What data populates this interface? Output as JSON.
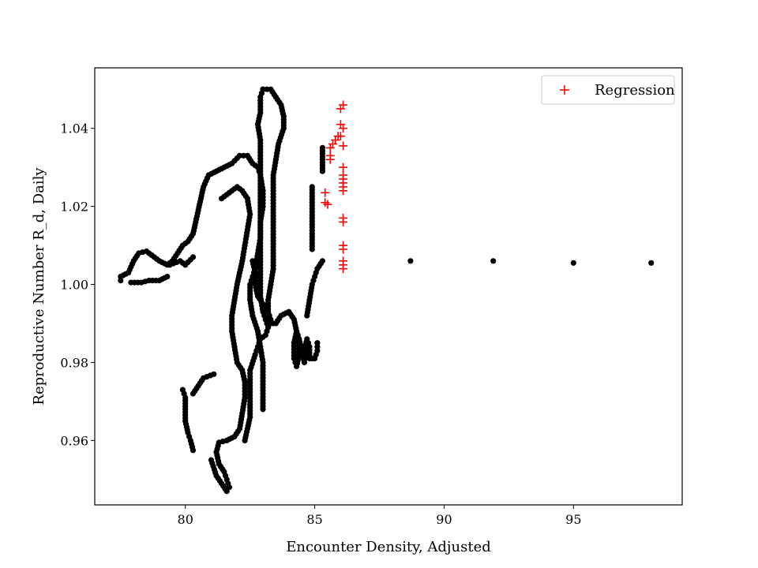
{
  "chart_data": {
    "type": "scatter",
    "title": "",
    "xlabel": "Encounter Density, Adjusted",
    "ylabel": "Reproductive Number R_d, Daily",
    "xlim": [
      76.5,
      99.2
    ],
    "ylim": [
      0.9435,
      1.0555
    ],
    "xticks": [
      80,
      85,
      90,
      95
    ],
    "xtick_labels": [
      "80",
      "85",
      "90",
      "95"
    ],
    "yticks": [
      0.96,
      0.98,
      1.0,
      1.02,
      1.04
    ],
    "ytick_labels": [
      "0.96",
      "0.98",
      "1.00",
      "1.02",
      "1.04"
    ],
    "grid": false,
    "legend": {
      "position": "top-right",
      "entries": [
        "Regression"
      ]
    },
    "colors": {
      "observed": "#000000",
      "regression": "#ff0000"
    },
    "observed_segments": [
      [
        [
          77.5,
          1.001
        ],
        [
          77.5,
          1.002
        ],
        [
          77.8,
          1.003
        ],
        [
          78.0,
          1.006
        ],
        [
          78.2,
          1.008
        ],
        [
          78.5,
          1.0085
        ],
        [
          78.8,
          1.007
        ],
        [
          79.0,
          1.006
        ],
        [
          79.3,
          1.005
        ],
        [
          79.5,
          1.006
        ],
        [
          79.7,
          1.008
        ],
        [
          79.9,
          1.01
        ],
        [
          80.1,
          1.011
        ],
        [
          80.3,
          1.013
        ],
        [
          80.4,
          1.016
        ],
        [
          80.5,
          1.019
        ],
        [
          80.6,
          1.022
        ],
        [
          80.7,
          1.025
        ],
        [
          80.9,
          1.028
        ],
        [
          81.2,
          1.029
        ],
        [
          81.5,
          1.03
        ],
        [
          81.8,
          1.031
        ],
        [
          82.1,
          1.033
        ],
        [
          82.4,
          1.033
        ],
        [
          82.6,
          1.031
        ],
        [
          82.8,
          1.03
        ],
        [
          82.9,
          1.028
        ],
        [
          83.0,
          1.024
        ],
        [
          83.0,
          1.02
        ],
        [
          82.9,
          1.016
        ],
        [
          82.9,
          1.012
        ],
        [
          82.8,
          1.008
        ],
        [
          82.7,
          1.004
        ],
        [
          82.6,
          1.002
        ],
        [
          82.5,
          1.0
        ],
        [
          82.5,
          0.996
        ],
        [
          82.6,
          0.992
        ],
        [
          82.8,
          0.988
        ],
        [
          82.9,
          0.984
        ],
        [
          83.0,
          0.98
        ],
        [
          83.0,
          0.976
        ],
        [
          83.0,
          0.972
        ],
        [
          83.0,
          0.968
        ]
      ],
      [
        [
          81.4,
          1.022
        ],
        [
          81.6,
          1.023
        ],
        [
          81.8,
          1.024
        ],
        [
          82.0,
          1.025
        ],
        [
          82.2,
          1.024
        ],
        [
          82.4,
          1.022
        ],
        [
          82.5,
          1.018
        ],
        [
          82.4,
          1.014
        ],
        [
          82.3,
          1.01
        ],
        [
          82.2,
          1.006
        ],
        [
          82.1,
          1.003
        ],
        [
          82.0,
          1.0
        ],
        [
          81.9,
          0.996
        ],
        [
          81.8,
          0.992
        ],
        [
          81.8,
          0.988
        ],
        [
          81.9,
          0.984
        ],
        [
          82.0,
          0.98
        ],
        [
          82.2,
          0.978
        ],
        [
          82.3,
          0.975
        ],
        [
          82.3,
          0.971
        ],
        [
          82.2,
          0.967
        ],
        [
          82.1,
          0.963
        ],
        [
          81.9,
          0.961
        ],
        [
          81.6,
          0.96
        ],
        [
          81.3,
          0.9595
        ],
        [
          81.2,
          0.957
        ],
        [
          81.3,
          0.954
        ],
        [
          81.5,
          0.952
        ],
        [
          81.6,
          0.95
        ],
        [
          81.7,
          0.948
        ],
        [
          81.6,
          0.947
        ],
        [
          81.4,
          0.949
        ],
        [
          81.2,
          0.951
        ],
        [
          81.0,
          0.955
        ]
      ],
      [
        [
          79.9,
          0.973
        ],
        [
          80.0,
          0.971
        ],
        [
          80.0,
          0.968
        ],
        [
          80.0,
          0.965
        ],
        [
          80.1,
          0.962
        ],
        [
          80.2,
          0.96
        ],
        [
          80.3,
          0.9575
        ]
      ],
      [
        [
          80.3,
          0.972
        ],
        [
          80.5,
          0.974
        ],
        [
          80.7,
          0.976
        ],
        [
          81.1,
          0.977
        ]
      ],
      [
        [
          79.4,
          1.005
        ],
        [
          79.8,
          1.006
        ],
        [
          80.0,
          1.005
        ],
        [
          80.3,
          1.007
        ]
      ],
      [
        [
          77.9,
          1.0005
        ],
        [
          78.3,
          1.0005
        ],
        [
          78.6,
          1.001
        ],
        [
          79.0,
          1.001
        ],
        [
          79.3,
          1.002
        ]
      ],
      [
        [
          83.0,
          1.05
        ],
        [
          83.3,
          1.05
        ],
        [
          83.5,
          1.048
        ],
        [
          83.7,
          1.046
        ],
        [
          83.8,
          1.043
        ],
        [
          83.8,
          1.04
        ],
        [
          83.6,
          1.036
        ],
        [
          83.5,
          1.032
        ],
        [
          83.4,
          1.028
        ],
        [
          83.4,
          1.024
        ],
        [
          83.4,
          1.02
        ],
        [
          83.4,
          1.016
        ],
        [
          83.4,
          1.012
        ],
        [
          83.4,
          1.008
        ],
        [
          83.4,
          1.004
        ],
        [
          83.3,
          1.0
        ],
        [
          83.2,
          0.996
        ],
        [
          83.2,
          0.992
        ],
        [
          83.3,
          0.99
        ],
        [
          83.5,
          0.99
        ],
        [
          83.7,
          0.992
        ],
        [
          84.0,
          0.993
        ],
        [
          84.2,
          0.991
        ],
        [
          84.3,
          0.988
        ],
        [
          84.4,
          0.985
        ],
        [
          84.4,
          0.982
        ],
        [
          84.3,
          0.979
        ],
        [
          84.2,
          0.981
        ],
        [
          84.2,
          0.985
        ],
        [
          84.3,
          0.988
        ],
        [
          84.4,
          0.986
        ],
        [
          84.5,
          0.983
        ],
        [
          84.6,
          0.98
        ],
        [
          84.6,
          0.983
        ],
        [
          84.7,
          0.986
        ],
        [
          84.8,
          0.984
        ],
        [
          84.8,
          0.981
        ],
        [
          85.0,
          0.981
        ],
        [
          85.1,
          0.983
        ],
        [
          85.1,
          0.985
        ]
      ],
      [
        [
          83.0,
          1.05
        ],
        [
          82.9,
          1.048
        ],
        [
          82.9,
          1.044
        ],
        [
          82.8,
          1.041
        ],
        [
          82.9,
          1.037
        ],
        [
          82.9,
          1.033
        ],
        [
          82.9,
          1.029
        ],
        [
          82.9,
          1.025
        ],
        [
          82.9,
          1.021
        ],
        [
          82.9,
          1.017
        ],
        [
          82.9,
          1.013
        ],
        [
          82.9,
          1.009
        ],
        [
          82.9,
          1.005
        ],
        [
          82.9,
          1.001
        ],
        [
          82.9,
          0.997
        ],
        [
          83.0,
          0.993
        ],
        [
          83.1,
          0.991
        ],
        [
          83.2,
          0.989
        ],
        [
          83.1,
          0.987
        ],
        [
          82.9,
          0.986
        ],
        [
          82.8,
          0.984
        ],
        [
          82.7,
          0.982
        ],
        [
          82.5,
          0.978
        ],
        [
          82.5,
          0.974
        ],
        [
          82.5,
          0.97
        ],
        [
          82.5,
          0.966
        ],
        [
          82.4,
          0.963
        ],
        [
          82.3,
          0.96
        ]
      ],
      [
        [
          82.6,
          1.006
        ],
        [
          82.7,
          1.003
        ],
        [
          82.7,
          1.0
        ],
        [
          82.8,
          0.997
        ],
        [
          83.0,
          0.995
        ],
        [
          83.2,
          0.993
        ],
        [
          83.3,
          0.991
        ],
        [
          83.2,
          0.989
        ],
        [
          83.1,
          0.991
        ]
      ],
      [
        [
          84.7,
          0.992
        ],
        [
          84.8,
          0.996
        ],
        [
          84.9,
          1.0
        ],
        [
          85.0,
          1.002
        ],
        [
          85.1,
          1.004
        ],
        [
          85.3,
          1.006
        ]
      ],
      [
        [
          84.9,
          1.025
        ],
        [
          84.9,
          1.021
        ],
        [
          84.9,
          1.017
        ],
        [
          84.9,
          1.013
        ],
        [
          84.9,
          1.009
        ]
      ],
      [
        [
          85.3,
          1.035
        ],
        [
          85.3,
          1.032
        ],
        [
          85.3,
          1.029
        ]
      ],
      [
        [
          88.7,
          1.006
        ],
        [
          91.9,
          1.006
        ],
        [
          95.0,
          1.0055
        ],
        [
          98.0,
          1.0055
        ]
      ]
    ],
    "regression_points": [
      [
        86.1,
        1.046
      ],
      [
        86.0,
        1.045
      ],
      [
        86.0,
        1.041
      ],
      [
        86.1,
        1.04
      ],
      [
        86.0,
        1.038
      ],
      [
        85.9,
        1.038
      ],
      [
        85.8,
        1.037
      ],
      [
        85.7,
        1.036
      ],
      [
        85.6,
        1.035
      ],
      [
        86.1,
        1.0355
      ],
      [
        85.6,
        1.033
      ],
      [
        85.6,
        1.032
      ],
      [
        86.1,
        1.03
      ],
      [
        86.1,
        1.028
      ],
      [
        86.1,
        1.027
      ],
      [
        86.1,
        1.026
      ],
      [
        86.1,
        1.025
      ],
      [
        86.1,
        1.024
      ],
      [
        85.4,
        1.0235
      ],
      [
        85.4,
        1.021
      ],
      [
        85.5,
        1.0205
      ],
      [
        86.1,
        1.017
      ],
      [
        86.1,
        1.016
      ],
      [
        86.1,
        1.01
      ],
      [
        86.1,
        1.009
      ],
      [
        86.1,
        1.006
      ],
      [
        86.1,
        1.005
      ],
      [
        86.1,
        1.004
      ]
    ]
  }
}
